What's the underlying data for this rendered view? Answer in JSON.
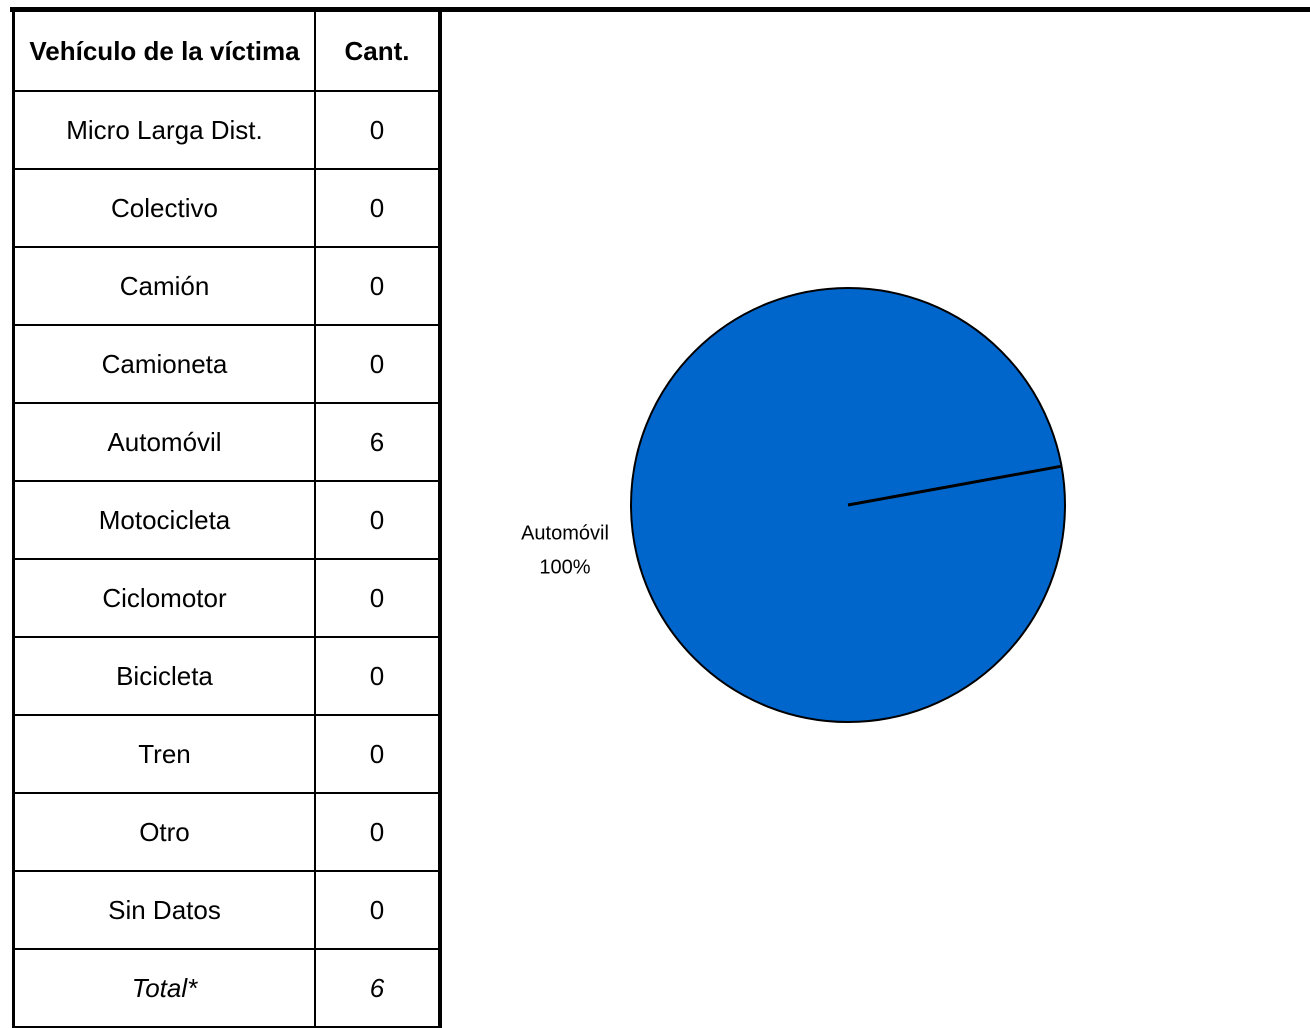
{
  "table": {
    "header": [
      "Vehículo de la víctima",
      "Cant."
    ],
    "rows": [
      [
        "Micro Larga Dist.",
        0
      ],
      [
        "Colectivo",
        0
      ],
      [
        "Camión",
        0
      ],
      [
        "Camioneta",
        0
      ],
      [
        "Automóvil",
        6
      ],
      [
        "Motocicleta",
        0
      ],
      [
        "Ciclomotor",
        0
      ],
      [
        "Bicicleta",
        0
      ],
      [
        "Tren",
        0
      ],
      [
        "Otro",
        0
      ],
      [
        "Sin Datos",
        0
      ],
      [
        "Total*",
        6
      ]
    ]
  },
  "chart_data": {
    "type": "pie",
    "categories": [
      "Automóvil"
    ],
    "values": [
      100
    ],
    "value_labels": [
      "100%"
    ],
    "color": "#0066cc"
  }
}
